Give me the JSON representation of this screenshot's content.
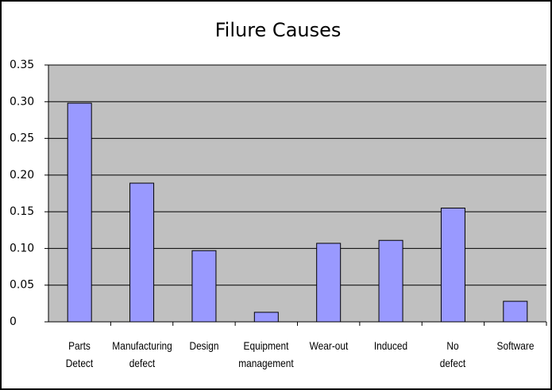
{
  "chart_data": {
    "type": "bar",
    "title": "Filure Causes",
    "categories": [
      "Parts\nDetect",
      "Manufacturing\ndefect",
      "Design",
      "Equipment\nmanagement",
      "Wear-out",
      "Induced",
      "No\ndefect",
      "Software"
    ],
    "values": [
      0.298,
      0.189,
      0.097,
      0.013,
      0.107,
      0.111,
      0.155,
      0.028
    ],
    "color": "#9999ff",
    "ylim": [
      0,
      0.35
    ],
    "yticks": [
      {
        "value": 0,
        "label": "0"
      },
      0.05,
      {
        "value": 0.1,
        "label": "0.10"
      },
      0.15,
      {
        "value": 0.2,
        "label": "0.20"
      },
      0.25,
      {
        "value": 0.3,
        "label": "0.30"
      },
      0.35
    ],
    "grid": true
  }
}
